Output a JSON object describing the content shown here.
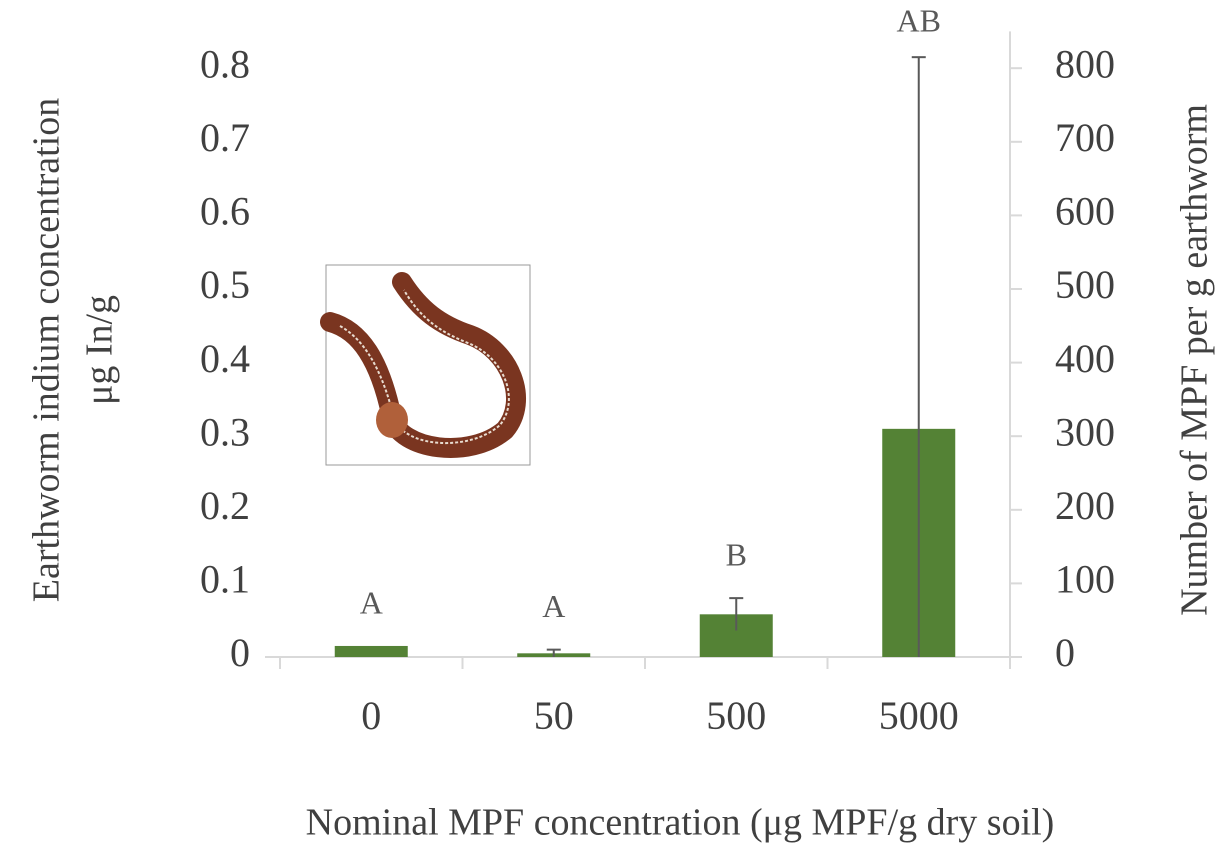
{
  "chart_data": {
    "type": "bar",
    "categories": [
      "0",
      "50",
      "500",
      "5000"
    ],
    "values": [
      0.015,
      0.005,
      0.058,
      0.31
    ],
    "errors": [
      null,
      0.005,
      0.022,
      0.505
    ],
    "annotations": [
      "A",
      "A",
      "B",
      "AB"
    ],
    "color": "#548235",
    "error_color": "#595959",
    "ylim": [
      0,
      0.85
    ],
    "yticks": [
      0,
      0.1,
      0.2,
      0.3,
      0.4,
      0.5,
      0.6,
      0.7,
      0.8
    ],
    "y2lim": [
      0,
      850
    ],
    "y2ticks": [
      0,
      100,
      200,
      300,
      400,
      500,
      600,
      700,
      800
    ],
    "y_label": [
      "Earthworm indium concentration",
      "μg In/g"
    ],
    "y2_label": "Number of MPF per g earthworm",
    "x_label": "Nominal MPF concentration (μg MPF/g dry soil)",
    "grid": false
  }
}
